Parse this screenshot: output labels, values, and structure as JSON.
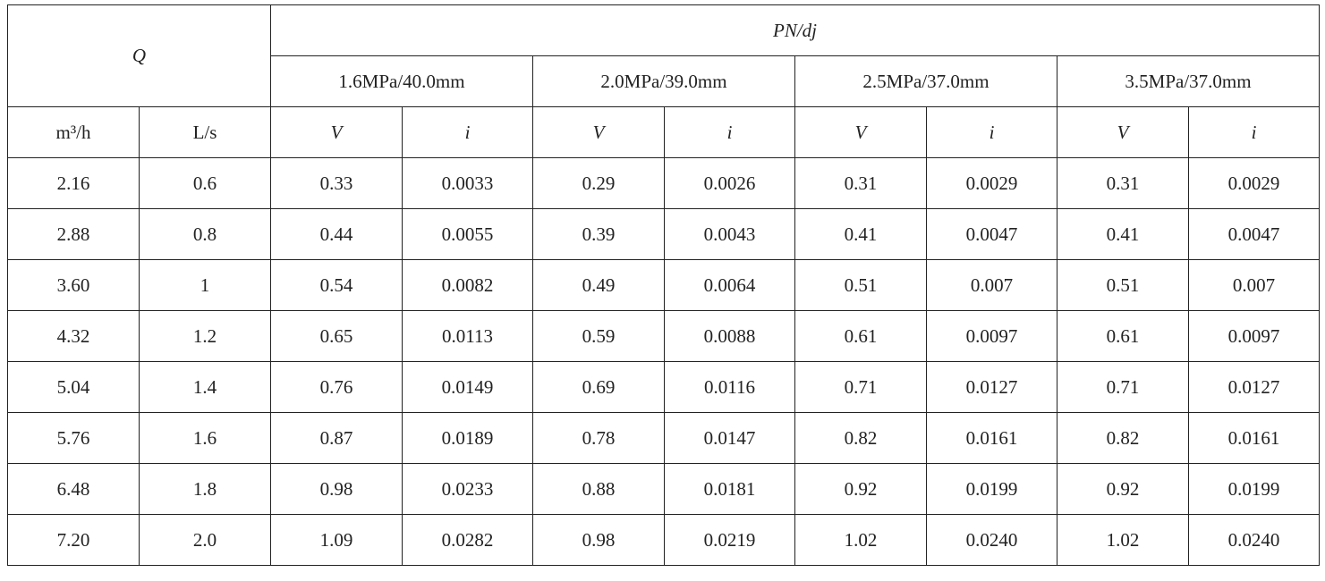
{
  "table": {
    "q": "Q",
    "pn": "PN/dj",
    "groups": [
      "1.6MPa/40.0mm",
      "2.0MPa/39.0mm",
      "2.5MPa/37.0mm",
      "3.5MPa/37.0mm"
    ],
    "units": [
      "m³/h",
      "L/s",
      "V",
      "i",
      "V",
      "i",
      "V",
      "i",
      "V",
      "i"
    ],
    "rows": [
      [
        "2.16",
        "0.6",
        "0.33",
        "0.0033",
        "0.29",
        "0.0026",
        "0.31",
        "0.0029",
        "0.31",
        "0.0029"
      ],
      [
        "2.88",
        "0.8",
        "0.44",
        "0.0055",
        "0.39",
        "0.0043",
        "0.41",
        "0.0047",
        "0.41",
        "0.0047"
      ],
      [
        "3.60",
        "1",
        "0.54",
        "0.0082",
        "0.49",
        "0.0064",
        "0.51",
        "0.007",
        "0.51",
        "0.007"
      ],
      [
        "4.32",
        "1.2",
        "0.65",
        "0.0113",
        "0.59",
        "0.0088",
        "0.61",
        "0.0097",
        "0.61",
        "0.0097"
      ],
      [
        "5.04",
        "1.4",
        "0.76",
        "0.0149",
        "0.69",
        "0.0116",
        "0.71",
        "0.0127",
        "0.71",
        "0.0127"
      ],
      [
        "5.76",
        "1.6",
        "0.87",
        "0.0189",
        "0.78",
        "0.0147",
        "0.82",
        "0.0161",
        "0.82",
        "0.0161"
      ],
      [
        "6.48",
        "1.8",
        "0.98",
        "0.0233",
        "0.88",
        "0.0181",
        "0.92",
        "0.0199",
        "0.92",
        "0.0199"
      ],
      [
        "7.20",
        "2.0",
        "1.09",
        "0.0282",
        "0.98",
        "0.0219",
        "1.02",
        "0.0240",
        "1.02",
        "0.0240"
      ]
    ]
  }
}
